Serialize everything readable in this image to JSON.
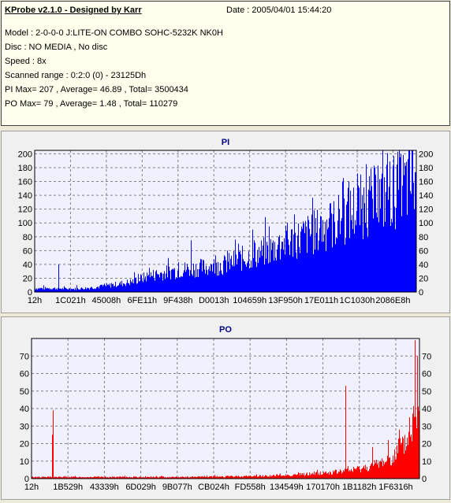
{
  "info": {
    "title": "KProbe v2.1.0 - Designed by Karr",
    "date": "Date : 2005/04/01 15:44:20",
    "lines": [
      "Model : 2-0-0-0 J:LITE-ON COMBO SOHC-5232K NK0H",
      "Disc : NO MEDIA , No disc",
      "Speed : 8x",
      "Scanned range : 0:2:0 (0) - 23125Dh",
      "PI Max= 207 , Average= 46.89 , Total= 3500434",
      "PO Max= 79 , Average= 1.48 , Total= 110279"
    ]
  },
  "chart_data": [
    {
      "type": "bar",
      "title": "PI",
      "color": "#0000ff",
      "ylim": [
        0,
        205
      ],
      "yticks": [
        0,
        20,
        40,
        60,
        80,
        100,
        120,
        140,
        160,
        180,
        200
      ],
      "xticks": [
        "12h",
        "1C021h",
        "45008h",
        "6FE11h",
        "9F438h",
        "D0013h",
        "104659h",
        "13F950h",
        "17E011h",
        "1C1030h",
        "2086E8h"
      ],
      "grid": true,
      "envelope": [
        [
          0,
          6
        ],
        [
          0.05,
          6
        ],
        [
          0.1,
          5
        ],
        [
          0.15,
          7
        ],
        [
          0.2,
          11
        ],
        [
          0.25,
          16
        ],
        [
          0.3,
          26
        ],
        [
          0.35,
          32
        ],
        [
          0.4,
          37
        ],
        [
          0.45,
          40
        ],
        [
          0.5,
          44
        ],
        [
          0.55,
          55
        ],
        [
          0.6,
          64
        ],
        [
          0.65,
          76
        ],
        [
          0.7,
          88
        ],
        [
          0.75,
          100
        ],
        [
          0.8,
          115
        ],
        [
          0.85,
          135
        ],
        [
          0.9,
          150
        ],
        [
          0.95,
          165
        ],
        [
          1,
          180
        ]
      ],
      "spikes": [
        [
          0.063,
          40
        ],
        [
          0.11,
          10
        ],
        [
          0.3,
          35
        ],
        [
          0.41,
          75
        ],
        [
          0.475,
          53
        ],
        [
          0.505,
          60
        ],
        [
          0.535,
          70
        ],
        [
          0.575,
          75
        ],
        [
          0.615,
          95
        ],
        [
          0.642,
          82
        ],
        [
          0.662,
          100
        ],
        [
          0.7,
          95
        ],
        [
          0.75,
          110
        ],
        [
          0.8,
          120
        ],
        [
          0.81,
          165
        ],
        [
          0.825,
          160
        ],
        [
          0.855,
          170
        ],
        [
          0.87,
          185
        ],
        [
          0.9,
          183
        ],
        [
          0.925,
          201
        ],
        [
          0.958,
          195
        ],
        [
          0.99,
          205
        ]
      ]
    },
    {
      "type": "bar",
      "title": "PO",
      "color": "#ff0000",
      "ylim": [
        0,
        80
      ],
      "yticks": [
        0,
        10,
        20,
        30,
        40,
        50,
        60,
        70
      ],
      "xticks": [
        "12h",
        "1B529h",
        "43339h",
        "6D029h",
        "9B077h",
        "CB024h",
        "FD558h",
        "134549h",
        "170170h",
        "1B1182h",
        "1F6316h"
      ],
      "grid": true,
      "envelope": [
        [
          0,
          1
        ],
        [
          0.2,
          1
        ],
        [
          0.4,
          1
        ],
        [
          0.55,
          1.5
        ],
        [
          0.65,
          2
        ],
        [
          0.72,
          3
        ],
        [
          0.78,
          4
        ],
        [
          0.84,
          6
        ],
        [
          0.88,
          8
        ],
        [
          0.92,
          12
        ],
        [
          0.95,
          17
        ],
        [
          0.97,
          24
        ],
        [
          0.99,
          40
        ],
        [
          1,
          50
        ]
      ],
      "spikes": [
        [
          0.055,
          39
        ],
        [
          0.052,
          25
        ],
        [
          0.81,
          53
        ],
        [
          0.88,
          18
        ],
        [
          0.92,
          22
        ],
        [
          0.95,
          28
        ],
        [
          0.975,
          35
        ],
        [
          0.99,
          79
        ],
        [
          0.995,
          70
        ]
      ]
    }
  ]
}
